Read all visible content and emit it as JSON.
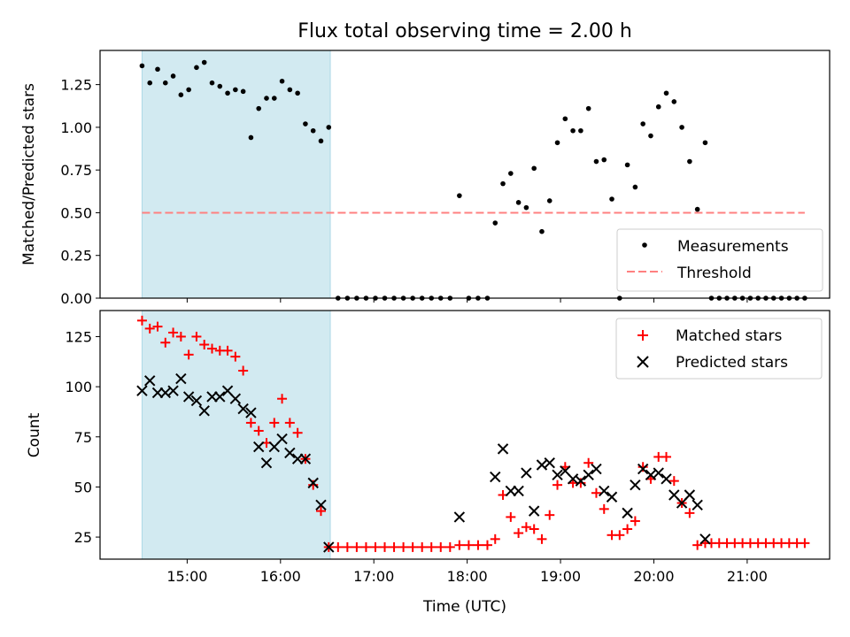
{
  "title": "Flux total observing time = 2.00 h",
  "colors": {
    "shade": "#add8e6",
    "threshold": "#ff8080",
    "measurement": "#000000",
    "matched": "#ff0000",
    "predicted": "#000000"
  },
  "chart_data": [
    {
      "type": "scatter",
      "ylabel": "Matched/Predicted stars",
      "ylim": [
        0,
        1.45
      ],
      "yticks": [
        "0.00",
        "0.25",
        "0.50",
        "0.75",
        "1.00",
        "1.25"
      ],
      "yticks_values": [
        0,
        0.25,
        0.5,
        0.75,
        1.0,
        1.25
      ],
      "shaded_region": {
        "start": "14:31",
        "end": "16:32"
      },
      "threshold": 0.5,
      "threshold_range": {
        "start": "14:31",
        "end": "21:37"
      },
      "legend": {
        "position": "lower-right",
        "entries": [
          {
            "label": "Measurements"
          },
          {
            "label": "Threshold"
          }
        ]
      },
      "series": [
        {
          "name": "Measurements",
          "marker": "dot",
          "points": [
            [
              "14:31",
              1.36
            ],
            [
              "14:36",
              1.26
            ],
            [
              "14:41",
              1.34
            ],
            [
              "14:46",
              1.26
            ],
            [
              "14:51",
              1.3
            ],
            [
              "14:56",
              1.19
            ],
            [
              "15:01",
              1.22
            ],
            [
              "15:06",
              1.35
            ],
            [
              "15:11",
              1.38
            ],
            [
              "15:16",
              1.26
            ],
            [
              "15:21",
              1.24
            ],
            [
              "15:26",
              1.2
            ],
            [
              "15:31",
              1.22
            ],
            [
              "15:36",
              1.21
            ],
            [
              "15:41",
              0.94
            ],
            [
              "15:46",
              1.11
            ],
            [
              "15:51",
              1.17
            ],
            [
              "15:56",
              1.17
            ],
            [
              "16:01",
              1.27
            ],
            [
              "16:06",
              1.22
            ],
            [
              "16:11",
              1.2
            ],
            [
              "16:16",
              1.02
            ],
            [
              "16:21",
              0.98
            ],
            [
              "16:26",
              0.92
            ],
            [
              "16:31",
              1.0
            ],
            [
              "16:37",
              0.0
            ],
            [
              "16:43",
              0.0
            ],
            [
              "16:49",
              0.0
            ],
            [
              "16:55",
              0.0
            ],
            [
              "17:01",
              0.0
            ],
            [
              "17:07",
              0.0
            ],
            [
              "17:13",
              0.0
            ],
            [
              "17:19",
              0.0
            ],
            [
              "17:25",
              0.0
            ],
            [
              "17:31",
              0.0
            ],
            [
              "17:37",
              0.0
            ],
            [
              "17:43",
              0.0
            ],
            [
              "17:49",
              0.0
            ],
            [
              "17:55",
              0.6
            ],
            [
              "18:01",
              0.0
            ],
            [
              "18:07",
              0.0
            ],
            [
              "18:13",
              0.0
            ],
            [
              "18:18",
              0.44
            ],
            [
              "18:23",
              0.67
            ],
            [
              "18:28",
              0.73
            ],
            [
              "18:33",
              0.56
            ],
            [
              "18:38",
              0.53
            ],
            [
              "18:43",
              0.76
            ],
            [
              "18:48",
              0.39
            ],
            [
              "18:53",
              0.57
            ],
            [
              "18:58",
              0.91
            ],
            [
              "19:03",
              1.05
            ],
            [
              "19:08",
              0.98
            ],
            [
              "19:13",
              0.98
            ],
            [
              "19:18",
              1.11
            ],
            [
              "19:23",
              0.8
            ],
            [
              "19:28",
              0.81
            ],
            [
              "19:33",
              0.58
            ],
            [
              "19:38",
              0.0
            ],
            [
              "19:43",
              0.78
            ],
            [
              "19:48",
              0.65
            ],
            [
              "19:53",
              1.02
            ],
            [
              "19:58",
              0.95
            ],
            [
              "20:03",
              1.12
            ],
            [
              "20:08",
              1.2
            ],
            [
              "20:13",
              1.15
            ],
            [
              "20:18",
              1.0
            ],
            [
              "20:23",
              0.8
            ],
            [
              "20:28",
              0.52
            ],
            [
              "20:33",
              0.91
            ],
            [
              "20:37",
              0.0
            ],
            [
              "20:42",
              0.0
            ],
            [
              "20:47",
              0.0
            ],
            [
              "20:52",
              0.0
            ],
            [
              "20:57",
              0.0
            ],
            [
              "21:02",
              0.0
            ],
            [
              "21:07",
              0.0
            ],
            [
              "21:12",
              0.0
            ],
            [
              "21:17",
              0.0
            ],
            [
              "21:22",
              0.0
            ],
            [
              "21:27",
              0.0
            ],
            [
              "21:32",
              0.0
            ],
            [
              "21:37",
              0.0
            ]
          ]
        }
      ]
    },
    {
      "type": "scatter",
      "xlabel": "Time (UTC)",
      "ylabel": "Count",
      "ylim": [
        14,
        138
      ],
      "yticks": [
        "25",
        "50",
        "75",
        "100",
        "125"
      ],
      "yticks_values": [
        25,
        50,
        75,
        100,
        125
      ],
      "xlim": [
        "14:04",
        "21:53"
      ],
      "xticks": [
        "15:00",
        "16:00",
        "17:00",
        "18:00",
        "19:00",
        "20:00",
        "21:00"
      ],
      "shaded_region": {
        "start": "14:31",
        "end": "16:32"
      },
      "legend": {
        "position": "top-right",
        "entries": [
          {
            "label": "Matched stars"
          },
          {
            "label": "Predicted stars"
          }
        ]
      },
      "series": [
        {
          "name": "Matched stars",
          "marker": "plus",
          "points": [
            [
              "14:31",
              133
            ],
            [
              "14:36",
              129
            ],
            [
              "14:41",
              130
            ],
            [
              "14:46",
              122
            ],
            [
              "14:51",
              127
            ],
            [
              "14:56",
              125
            ],
            [
              "15:01",
              116
            ],
            [
              "15:06",
              125
            ],
            [
              "15:11",
              121
            ],
            [
              "15:16",
              119
            ],
            [
              "15:21",
              118
            ],
            [
              "15:26",
              118
            ],
            [
              "15:31",
              115
            ],
            [
              "15:36",
              108
            ],
            [
              "15:41",
              82
            ],
            [
              "15:46",
              78
            ],
            [
              "15:51",
              72
            ],
            [
              "15:56",
              82
            ],
            [
              "16:01",
              94
            ],
            [
              "16:06",
              82
            ],
            [
              "16:11",
              77
            ],
            [
              "16:16",
              64
            ],
            [
              "16:21",
              51
            ],
            [
              "16:26",
              38
            ],
            [
              "16:31",
              20
            ],
            [
              "16:37",
              20
            ],
            [
              "16:43",
              20
            ],
            [
              "16:49",
              20
            ],
            [
              "16:55",
              20
            ],
            [
              "17:01",
              20
            ],
            [
              "17:07",
              20
            ],
            [
              "17:13",
              20
            ],
            [
              "17:19",
              20
            ],
            [
              "17:25",
              20
            ],
            [
              "17:31",
              20
            ],
            [
              "17:37",
              20
            ],
            [
              "17:43",
              20
            ],
            [
              "17:49",
              20
            ],
            [
              "17:55",
              21
            ],
            [
              "18:01",
              21
            ],
            [
              "18:07",
              21
            ],
            [
              "18:13",
              21
            ],
            [
              "18:18",
              24
            ],
            [
              "18:23",
              46
            ],
            [
              "18:28",
              35
            ],
            [
              "18:33",
              27
            ],
            [
              "18:38",
              30
            ],
            [
              "18:43",
              29
            ],
            [
              "18:48",
              24
            ],
            [
              "18:53",
              36
            ],
            [
              "18:58",
              51
            ],
            [
              "19:03",
              60
            ],
            [
              "19:08",
              52
            ],
            [
              "19:13",
              52
            ],
            [
              "19:18",
              62
            ],
            [
              "19:23",
              47
            ],
            [
              "19:28",
              39
            ],
            [
              "19:33",
              26
            ],
            [
              "19:38",
              26
            ],
            [
              "19:43",
              29
            ],
            [
              "19:48",
              33
            ],
            [
              "19:53",
              60
            ],
            [
              "19:58",
              54
            ],
            [
              "20:03",
              65
            ],
            [
              "20:08",
              65
            ],
            [
              "20:13",
              53
            ],
            [
              "20:18",
              42
            ],
            [
              "20:23",
              37
            ],
            [
              "20:28",
              21
            ],
            [
              "20:33",
              22
            ],
            [
              "20:37",
              22
            ],
            [
              "20:42",
              22
            ],
            [
              "20:47",
              22
            ],
            [
              "20:52",
              22
            ],
            [
              "20:57",
              22
            ],
            [
              "21:02",
              22
            ],
            [
              "21:07",
              22
            ],
            [
              "21:12",
              22
            ],
            [
              "21:17",
              22
            ],
            [
              "21:22",
              22
            ],
            [
              "21:27",
              22
            ],
            [
              "21:32",
              22
            ],
            [
              "21:37",
              22
            ]
          ]
        },
        {
          "name": "Predicted stars",
          "marker": "x",
          "points": [
            [
              "14:31",
              98
            ],
            [
              "14:36",
              103
            ],
            [
              "14:41",
              97
            ],
            [
              "14:46",
              97
            ],
            [
              "14:51",
              98
            ],
            [
              "14:56",
              104
            ],
            [
              "15:01",
              95
            ],
            [
              "15:06",
              93
            ],
            [
              "15:11",
              88
            ],
            [
              "15:16",
              95
            ],
            [
              "15:21",
              95
            ],
            [
              "15:26",
              98
            ],
            [
              "15:31",
              94
            ],
            [
              "15:36",
              89
            ],
            [
              "15:41",
              87
            ],
            [
              "15:46",
              70
            ],
            [
              "15:51",
              62
            ],
            [
              "15:56",
              70
            ],
            [
              "16:01",
              74
            ],
            [
              "16:06",
              67
            ],
            [
              "16:11",
              64
            ],
            [
              "16:16",
              64
            ],
            [
              "16:21",
              52
            ],
            [
              "16:26",
              41
            ],
            [
              "16:31",
              20
            ],
            [
              "17:55",
              35
            ],
            [
              "18:18",
              55
            ],
            [
              "18:23",
              69
            ],
            [
              "18:28",
              48
            ],
            [
              "18:33",
              48
            ],
            [
              "18:38",
              57
            ],
            [
              "18:43",
              38
            ],
            [
              "18:48",
              61
            ],
            [
              "18:53",
              62
            ],
            [
              "18:58",
              56
            ],
            [
              "19:03",
              58
            ],
            [
              "19:08",
              54
            ],
            [
              "19:13",
              53
            ],
            [
              "19:18",
              56
            ],
            [
              "19:23",
              59
            ],
            [
              "19:28",
              48
            ],
            [
              "19:33",
              45
            ],
            [
              "19:43",
              37
            ],
            [
              "19:48",
              51
            ],
            [
              "19:53",
              59
            ],
            [
              "19:58",
              56
            ],
            [
              "20:03",
              57
            ],
            [
              "20:08",
              54
            ],
            [
              "20:13",
              46
            ],
            [
              "20:18",
              42
            ],
            [
              "20:23",
              46
            ],
            [
              "20:28",
              41
            ],
            [
              "20:33",
              24
            ]
          ]
        }
      ]
    }
  ]
}
